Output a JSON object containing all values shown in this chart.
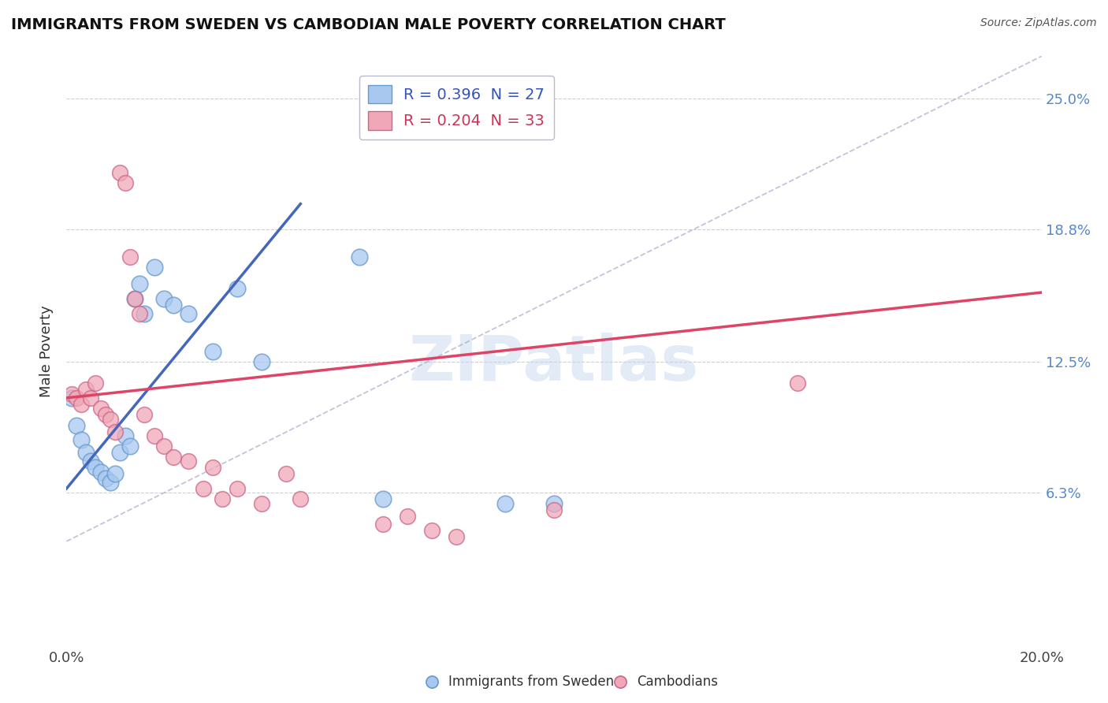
{
  "title": "IMMIGRANTS FROM SWEDEN VS CAMBODIAN MALE POVERTY CORRELATION CHART",
  "source": "Source: ZipAtlas.com",
  "ylabel": "Male Poverty",
  "xlim": [
    0.0,
    0.2
  ],
  "ylim_min": -0.01,
  "ylim_max": 0.27,
  "yticks": [
    0.063,
    0.125,
    0.188,
    0.25
  ],
  "ytick_labels": [
    "6.3%",
    "12.5%",
    "18.8%",
    "25.0%"
  ],
  "xticks": [
    0.0,
    0.05,
    0.1,
    0.15,
    0.2
  ],
  "xtick_labels": [
    "0.0%",
    "",
    "",
    "",
    "20.0%"
  ],
  "legend_r1": "R = 0.396  N = 27",
  "legend_r2": "R = 0.204  N = 33",
  "blue_scatter_color": "#a8c8f0",
  "blue_edge_color": "#6699cc",
  "pink_scatter_color": "#f0a8b8",
  "pink_edge_color": "#cc6688",
  "blue_line_color": "#4466bb",
  "pink_line_color": "#dd4466",
  "dash_line_color": "#aaaacc",
  "watermark": "ZIPatlas",
  "sweden_x": [
    0.001,
    0.002,
    0.003,
    0.004,
    0.005,
    0.006,
    0.007,
    0.008,
    0.009,
    0.01,
    0.011,
    0.012,
    0.013,
    0.014,
    0.015,
    0.016,
    0.018,
    0.02,
    0.022,
    0.025,
    0.03,
    0.035,
    0.04,
    0.06,
    0.065,
    0.09,
    0.1
  ],
  "sweden_y": [
    0.108,
    0.095,
    0.088,
    0.082,
    0.078,
    0.075,
    0.073,
    0.07,
    0.068,
    0.072,
    0.082,
    0.09,
    0.085,
    0.155,
    0.162,
    0.148,
    0.17,
    0.155,
    0.152,
    0.148,
    0.13,
    0.16,
    0.125,
    0.175,
    0.06,
    0.058,
    0.058
  ],
  "cambodian_x": [
    0.001,
    0.002,
    0.003,
    0.004,
    0.005,
    0.006,
    0.007,
    0.008,
    0.009,
    0.01,
    0.011,
    0.012,
    0.013,
    0.014,
    0.015,
    0.016,
    0.018,
    0.02,
    0.022,
    0.025,
    0.028,
    0.03,
    0.032,
    0.035,
    0.04,
    0.045,
    0.048,
    0.065,
    0.07,
    0.075,
    0.08,
    0.1,
    0.15
  ],
  "cambodian_y": [
    0.11,
    0.108,
    0.105,
    0.112,
    0.108,
    0.115,
    0.103,
    0.1,
    0.098,
    0.092,
    0.215,
    0.21,
    0.175,
    0.155,
    0.148,
    0.1,
    0.09,
    0.085,
    0.08,
    0.078,
    0.065,
    0.075,
    0.06,
    0.065,
    0.058,
    0.072,
    0.06,
    0.048,
    0.052,
    0.045,
    0.042,
    0.055,
    0.115
  ],
  "blue_trend_x0": 0.0,
  "blue_trend_y0": 0.065,
  "blue_trend_x1": 0.048,
  "blue_trend_y1": 0.2,
  "pink_trend_x0": 0.0,
  "pink_trend_x1": 0.2,
  "pink_trend_y0": 0.108,
  "pink_trend_y1": 0.158
}
